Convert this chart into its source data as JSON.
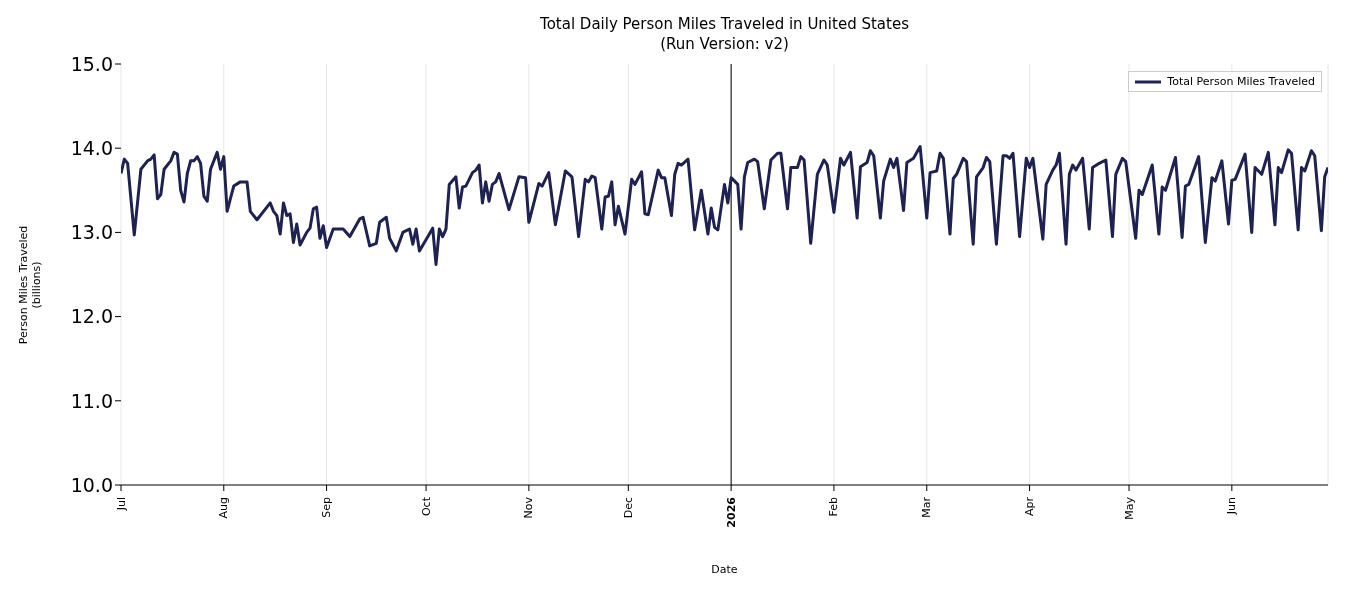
{
  "chart_data": {
    "type": "line",
    "title": "Total Daily Person Miles Traveled in United States",
    "subtitle": "(Run Version: v2)",
    "xlabel": "Date",
    "ylabel": "Person Miles Traveled\n(billions)",
    "x": [
      "2025-07-01",
      "2025-07-02",
      "2025-07-03",
      "2025-07-05",
      "2025-07-07",
      "2025-07-09",
      "2025-07-10",
      "2025-07-11",
      "2025-07-12",
      "2025-07-13",
      "2025-07-14",
      "2025-07-16",
      "2025-07-17",
      "2025-07-18",
      "2025-07-19",
      "2025-07-20",
      "2025-07-21",
      "2025-07-22",
      "2025-07-23",
      "2025-07-24",
      "2025-07-25",
      "2025-07-26",
      "2025-07-27",
      "2025-07-28",
      "2025-07-30",
      "2025-07-31",
      "2025-08-01",
      "2025-08-02",
      "2025-08-03",
      "2025-08-04",
      "2025-08-06",
      "2025-08-08",
      "2025-08-09",
      "2025-08-11",
      "2025-08-13",
      "2025-08-15",
      "2025-08-16",
      "2025-08-17",
      "2025-08-18",
      "2025-08-19",
      "2025-08-20",
      "2025-08-21",
      "2025-08-22",
      "2025-08-23",
      "2025-08-24",
      "2025-08-26",
      "2025-08-27",
      "2025-08-28",
      "2025-08-29",
      "2025-08-30",
      "2025-08-31",
      "2025-09-01",
      "2025-09-03",
      "2025-09-06",
      "2025-09-08",
      "2025-09-11",
      "2025-09-12",
      "2025-09-14",
      "2025-09-16",
      "2025-09-17",
      "2025-09-19",
      "2025-09-20",
      "2025-09-22",
      "2025-09-24",
      "2025-09-26",
      "2025-09-27",
      "2025-09-28",
      "2025-09-29",
      "2025-10-03",
      "2025-10-04",
      "2025-10-05",
      "2025-10-06",
      "2025-10-07",
      "2025-10-08",
      "2025-10-10",
      "2025-10-11",
      "2025-10-12",
      "2025-10-13",
      "2025-10-15",
      "2025-10-16",
      "2025-10-17",
      "2025-10-18",
      "2025-10-19",
      "2025-10-20",
      "2025-10-21",
      "2025-10-22",
      "2025-10-23",
      "2025-10-26",
      "2025-10-29",
      "2025-10-31",
      "2025-11-01",
      "2025-11-04",
      "2025-11-05",
      "2025-11-07",
      "2025-11-09",
      "2025-11-12",
      "2025-11-14",
      "2025-11-16",
      "2025-11-18",
      "2025-11-19",
      "2025-11-20",
      "2025-11-21",
      "2025-11-23",
      "2025-11-24",
      "2025-11-25",
      "2025-11-26",
      "2025-11-27",
      "2025-11-28",
      "2025-11-30",
      "2025-12-02",
      "2025-12-03",
      "2025-12-05",
      "2025-12-06",
      "2025-12-07",
      "2025-12-10",
      "2025-12-11",
      "2025-12-12",
      "2025-12-14",
      "2025-12-15",
      "2025-12-16",
      "2025-12-17",
      "2025-12-19",
      "2025-12-21",
      "2025-12-23",
      "2025-12-25",
      "2025-12-26",
      "2025-12-27",
      "2025-12-28",
      "2025-12-30",
      "2025-12-31",
      "2026-01-01",
      "2026-01-03",
      "2026-01-04",
      "2026-01-05",
      "2026-01-06",
      "2026-01-08",
      "2026-01-09",
      "2026-01-11",
      "2026-01-13",
      "2026-01-15",
      "2026-01-16",
      "2026-01-18",
      "2026-01-19",
      "2026-01-21",
      "2026-01-22",
      "2026-01-23",
      "2026-01-25",
      "2026-01-27",
      "2026-01-29",
      "2026-01-30",
      "2026-02-01",
      "2026-02-03",
      "2026-02-04",
      "2026-02-06",
      "2026-02-08",
      "2026-02-09",
      "2026-02-11",
      "2026-02-12",
      "2026-02-13",
      "2026-02-15",
      "2026-02-16",
      "2026-02-18",
      "2026-02-19",
      "2026-02-20",
      "2026-02-22",
      "2026-02-23",
      "2026-02-25",
      "2026-02-27",
      "2026-03-01",
      "2026-03-02",
      "2026-03-04",
      "2026-03-05",
      "2026-03-06",
      "2026-03-08",
      "2026-03-09",
      "2026-03-10",
      "2026-03-12",
      "2026-03-13",
      "2026-03-15",
      "2026-03-16",
      "2026-03-18",
      "2026-03-19",
      "2026-03-20",
      "2026-03-22",
      "2026-03-24",
      "2026-03-25",
      "2026-03-26",
      "2026-03-27",
      "2026-03-29",
      "2026-03-31",
      "2026-04-01",
      "2026-04-02",
      "2026-04-05",
      "2026-04-06",
      "2026-04-08",
      "2026-04-09",
      "2026-04-10",
      "2026-04-12",
      "2026-04-13",
      "2026-04-14",
      "2026-04-15",
      "2026-04-17",
      "2026-04-19",
      "2026-04-20",
      "2026-04-22",
      "2026-04-24",
      "2026-04-26",
      "2026-04-27",
      "2026-04-29",
      "2026-04-30",
      "2026-05-03",
      "2026-05-04",
      "2026-05-05",
      "2026-05-08",
      "2026-05-10",
      "2026-05-11",
      "2026-05-12",
      "2026-05-15",
      "2026-05-17",
      "2026-05-18",
      "2026-05-19",
      "2026-05-22",
      "2026-05-24",
      "2026-05-26",
      "2026-05-27",
      "2026-05-29",
      "2026-05-31",
      "2026-06-01",
      "2026-06-02",
      "2026-06-05",
      "2026-06-07",
      "2026-06-08",
      "2026-06-10",
      "2026-06-12",
      "2026-06-14",
      "2026-06-15",
      "2026-06-16",
      "2026-06-18",
      "2026-06-19",
      "2026-06-21",
      "2026-06-22",
      "2026-06-23",
      "2026-06-25",
      "2026-06-26",
      "2026-06-28",
      "2026-06-29",
      "2026-06-30"
    ],
    "series": [
      {
        "name": "Total Person Miles Traveled",
        "color": "#1f2150",
        "values": [
          13.7,
          13.87,
          13.82,
          12.97,
          13.75,
          13.85,
          13.87,
          13.92,
          13.4,
          13.45,
          13.75,
          13.85,
          13.95,
          13.93,
          13.5,
          13.36,
          13.7,
          13.85,
          13.85,
          13.9,
          13.82,
          13.43,
          13.37,
          13.75,
          13.95,
          13.75,
          13.9,
          13.25,
          13.4,
          13.55,
          13.6,
          13.6,
          13.25,
          13.15,
          13.25,
          13.35,
          13.25,
          13.2,
          12.98,
          13.35,
          13.2,
          13.22,
          12.88,
          13.1,
          12.85,
          13.0,
          13.05,
          13.28,
          13.3,
          12.93,
          13.08,
          12.82,
          13.04,
          13.04,
          12.95,
          13.16,
          13.18,
          12.84,
          12.87,
          13.12,
          13.18,
          12.93,
          12.78,
          13.0,
          13.04,
          12.86,
          13.04,
          12.78,
          13.05,
          12.62,
          13.04,
          12.95,
          13.04,
          13.57,
          13.66,
          13.29,
          13.54,
          13.55,
          13.71,
          13.74,
          13.8,
          13.35,
          13.6,
          13.37,
          13.57,
          13.6,
          13.7,
          13.27,
          13.66,
          13.65,
          13.12,
          13.58,
          13.55,
          13.71,
          13.09,
          13.73,
          13.66,
          12.95,
          13.63,
          13.6,
          13.67,
          13.65,
          13.04,
          13.42,
          13.43,
          13.6,
          13.09,
          13.31,
          12.98,
          13.63,
          13.57,
          13.72,
          13.22,
          13.21,
          13.74,
          13.65,
          13.65,
          13.2,
          13.69,
          13.82,
          13.8,
          13.87,
          13.03,
          13.5,
          12.98,
          13.29,
          13.06,
          13.03,
          13.57,
          13.35,
          13.65,
          13.57,
          13.04,
          13.66,
          13.83,
          13.87,
          13.84,
          13.28,
          13.86,
          13.94,
          13.94,
          13.28,
          13.77,
          13.77,
          13.9,
          13.86,
          12.87,
          13.69,
          13.86,
          13.8,
          13.24,
          13.88,
          13.8,
          13.95,
          13.17,
          13.78,
          13.83,
          13.97,
          13.91,
          13.17,
          13.61,
          13.87,
          13.77,
          13.88,
          13.26,
          13.83,
          13.88,
          14.02,
          13.17,
          13.71,
          13.73,
          13.94,
          13.88,
          12.98,
          13.64,
          13.69,
          13.88,
          13.84,
          12.86,
          13.66,
          13.77,
          13.89,
          13.84,
          12.86,
          13.91,
          13.91,
          13.88,
          13.94,
          12.95,
          13.88,
          13.77,
          13.88,
          12.92,
          13.57,
          13.74,
          13.8,
          13.94,
          12.86,
          13.69,
          13.8,
          13.74,
          13.88,
          13.04,
          13.77,
          13.82,
          13.86,
          12.95,
          13.69,
          13.88,
          13.84,
          12.93,
          13.5,
          13.45,
          13.8,
          12.98,
          13.54,
          13.5,
          13.89,
          12.94,
          13.55,
          13.57,
          13.9,
          12.88,
          13.65,
          13.61,
          13.85,
          13.1,
          13.62,
          13.63,
          13.93,
          13.0,
          13.77,
          13.69,
          13.95,
          13.09,
          13.77,
          13.71,
          13.98,
          13.94,
          13.03,
          13.77,
          13.73,
          13.97,
          13.91,
          13.02,
          13.66,
          13.77
        ]
      }
    ],
    "xlim": [
      "2025-07-01",
      "2026-06-30"
    ],
    "xticks": [
      {
        "value": "2025-07-01",
        "label": "Jul"
      },
      {
        "value": "2025-08-01",
        "label": "Aug"
      },
      {
        "value": "2025-09-01",
        "label": "Sep"
      },
      {
        "value": "2025-10-01",
        "label": "Oct"
      },
      {
        "value": "2025-11-01",
        "label": "Nov"
      },
      {
        "value": "2025-12-01",
        "label": "Dec"
      },
      {
        "value": "2026-01-01",
        "label": "2026"
      },
      {
        "value": "2026-02-01",
        "label": "Feb"
      },
      {
        "value": "2026-03-01",
        "label": "Mar"
      },
      {
        "value": "2026-04-01",
        "label": "Apr"
      },
      {
        "value": "2026-05-01",
        "label": "May"
      },
      {
        "value": "2026-06-01",
        "label": "Jun"
      }
    ],
    "ylim": [
      10,
      15
    ],
    "yticks": [
      {
        "value": 10,
        "label": "10.0"
      },
      {
        "value": 11,
        "label": "11.0"
      },
      {
        "value": 12,
        "label": "12.0"
      },
      {
        "value": 13,
        "label": "13.0"
      },
      {
        "value": 14,
        "label": "14.0"
      },
      {
        "value": 15,
        "label": "15.0"
      }
    ],
    "ref_lines": [
      {
        "axis": "x",
        "value": "2026-01-01",
        "color": "#000000"
      }
    ],
    "grid": "x",
    "legend": "top right",
    "marker": "none",
    "line_style": "solid"
  }
}
